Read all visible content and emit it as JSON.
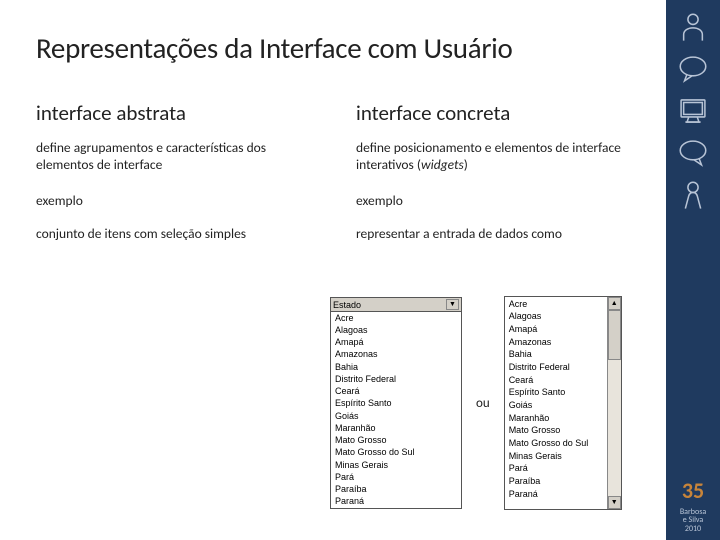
{
  "slide": {
    "title": "Representações da Interface com Usuário",
    "page_number": "35",
    "citation_line1": "Barbosa",
    "citation_line2": "e Silva",
    "citation_line3": "2010"
  },
  "left": {
    "header": "interface abstrata",
    "sub": "define agrupamentos e características dos elementos de  interface",
    "label": "exemplo",
    "desc": "conjunto de itens com seleção simples"
  },
  "right": {
    "header": "interface concreta",
    "sub_prefix": "define posicionamento e elementos de interface interativos (",
    "sub_italic": "widgets",
    "sub_suffix": ")",
    "label": "exemplo",
    "desc": "representar a entrada de dados como"
  },
  "ou": "ou",
  "dropdown": {
    "selected": "Estado",
    "items": [
      "Acre",
      "Alagoas",
      "Amapá",
      "Amazonas",
      "Bahia",
      "Distrito Federal",
      "Ceará",
      "Espírito Santo",
      "Goiás",
      "Maranhão",
      "Mato Grosso",
      "Mato Grosso do Sul",
      "Minas Gerais",
      "Pará",
      "Paraíba",
      "Paraná"
    ]
  },
  "listbox": {
    "items": [
      "Acre",
      "Alagoas",
      "Amapá",
      "Amazonas",
      "Bahia",
      "Distrito Federal",
      "Ceará",
      "Espírito Santo",
      "Goiás",
      "Maranhão",
      "Mato Grosso",
      "Mato Grosso do Sul",
      "Minas Gerais",
      "Pará",
      "Paraíba",
      "Paraná"
    ]
  },
  "colors": {
    "sidebar_bg": "#1f3a5f",
    "icon_stroke": "#b8c4d6",
    "page_num": "#c7843a"
  }
}
